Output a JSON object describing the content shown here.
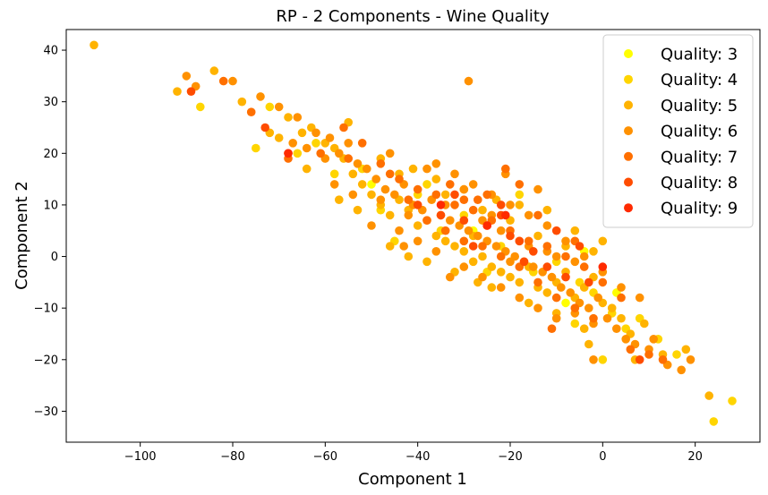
{
  "chart_data": {
    "type": "scatter",
    "title": "RP - 2 Components - Wine Quality",
    "xlabel": "Component 1",
    "ylabel": "Component 2",
    "xlim": [
      -116,
      34
    ],
    "ylim": [
      -36,
      44
    ],
    "xticks": [
      -100,
      -80,
      -60,
      -40,
      -20,
      0,
      20
    ],
    "yticks": [
      -30,
      -20,
      -10,
      0,
      10,
      20,
      30,
      40
    ],
    "xtick_labels": [
      "−100",
      "−80",
      "−60",
      "−40",
      "−20",
      "0",
      "20"
    ],
    "ytick_labels": [
      "−30",
      "−20",
      "−10",
      "0",
      "10",
      "20",
      "30",
      "40"
    ],
    "grid": false,
    "legend_position": "top-right",
    "series": [
      {
        "name": "Quality: 3",
        "color": "#ffff00",
        "points": [
          [
            -4,
            1
          ],
          [
            -8,
            -9
          ],
          [
            3,
            -7
          ],
          [
            -28,
            5
          ],
          [
            -50,
            14
          ]
        ]
      },
      {
        "name": "Quality: 4",
        "color": "#ffd500",
        "points": [
          [
            -75,
            21
          ],
          [
            -58,
            16
          ],
          [
            -48,
            9
          ],
          [
            -52,
            17
          ],
          [
            -40,
            12
          ],
          [
            -35,
            5
          ],
          [
            -30,
            8
          ],
          [
            -22,
            2
          ],
          [
            -15,
            -3
          ],
          [
            -10,
            -1
          ],
          [
            -5,
            -5
          ],
          [
            -2,
            -7
          ],
          [
            2,
            -11
          ],
          [
            5,
            -14
          ],
          [
            8,
            -12
          ],
          [
            12,
            -16
          ],
          [
            16,
            -19
          ],
          [
            -18,
            12
          ],
          [
            -38,
            14
          ],
          [
            -45,
            3
          ],
          [
            -62,
            22
          ],
          [
            -66,
            20
          ],
          [
            -72,
            29
          ],
          [
            -87,
            29
          ],
          [
            24,
            -32
          ],
          [
            28,
            -28
          ],
          [
            -6,
            -13
          ],
          [
            0,
            -20
          ],
          [
            -25,
            -3
          ]
        ]
      },
      {
        "name": "Quality: 5",
        "color": "#ffb300",
        "points": [
          [
            -110,
            41
          ],
          [
            -92,
            32
          ],
          [
            -84,
            36
          ],
          [
            -78,
            30
          ],
          [
            -72,
            24
          ],
          [
            -68,
            27
          ],
          [
            -65,
            24
          ],
          [
            -63,
            25
          ],
          [
            -60,
            22
          ],
          [
            -58,
            21
          ],
          [
            -56,
            19
          ],
          [
            -54,
            16
          ],
          [
            -52,
            14
          ],
          [
            -50,
            12
          ],
          [
            -48,
            10
          ],
          [
            -46,
            8
          ],
          [
            -44,
            11
          ],
          [
            -42,
            9
          ],
          [
            -40,
            6
          ],
          [
            -38,
            7
          ],
          [
            -36,
            4
          ],
          [
            -34,
            3
          ],
          [
            -32,
            2
          ],
          [
            -30,
            1
          ],
          [
            -28,
            -1
          ],
          [
            -26,
            0
          ],
          [
            -24,
            -2
          ],
          [
            -22,
            -3
          ],
          [
            -20,
            -4
          ],
          [
            -18,
            -5
          ],
          [
            -16,
            -2
          ],
          [
            -14,
            -6
          ],
          [
            -12,
            -7
          ],
          [
            -10,
            -5
          ],
          [
            -8,
            -3
          ],
          [
            -6,
            -8
          ],
          [
            -4,
            -6
          ],
          [
            -2,
            -4
          ],
          [
            0,
            -9
          ],
          [
            2,
            -10
          ],
          [
            4,
            -12
          ],
          [
            6,
            -15
          ],
          [
            9,
            -13
          ],
          [
            13,
            -19
          ],
          [
            18,
            -18
          ],
          [
            23,
            -27
          ],
          [
            -34,
            12
          ],
          [
            -26,
            9
          ],
          [
            -20,
            7
          ],
          [
            -14,
            4
          ],
          [
            -8,
            2
          ],
          [
            -2,
            1
          ],
          [
            -44,
            16
          ],
          [
            -36,
            15
          ],
          [
            -30,
            13
          ],
          [
            -46,
            2
          ],
          [
            -42,
            0
          ],
          [
            -38,
            -1
          ],
          [
            -32,
            -3
          ],
          [
            -24,
            -6
          ],
          [
            -16,
            -9
          ],
          [
            -10,
            -11
          ],
          [
            -4,
            -14
          ],
          [
            -70,
            23
          ],
          [
            -57,
            11
          ],
          [
            -53,
            9
          ],
          [
            -28,
            4
          ],
          [
            -18,
            10
          ],
          [
            -12,
            9
          ],
          [
            -6,
            5
          ],
          [
            0,
            3
          ],
          [
            -64,
            17
          ],
          [
            -55,
            26
          ],
          [
            -48,
            19
          ],
          [
            -41,
            17
          ],
          [
            -23,
            11
          ],
          [
            -3,
            -17
          ],
          [
            7,
            -20
          ],
          [
            -27,
            -5
          ]
        ]
      },
      {
        "name": "Quality: 6",
        "color": "#ff9100",
        "points": [
          [
            -90,
            35
          ],
          [
            -88,
            33
          ],
          [
            -80,
            34
          ],
          [
            -74,
            31
          ],
          [
            -70,
            29
          ],
          [
            -66,
            27
          ],
          [
            -62,
            24
          ],
          [
            -59,
            23
          ],
          [
            -57,
            20
          ],
          [
            -55,
            22
          ],
          [
            -53,
            18
          ],
          [
            -51,
            17
          ],
          [
            -49,
            15
          ],
          [
            -47,
            13
          ],
          [
            -45,
            12
          ],
          [
            -43,
            14
          ],
          [
            -41,
            10
          ],
          [
            -39,
            9
          ],
          [
            -37,
            11
          ],
          [
            -35,
            8
          ],
          [
            -33,
            7
          ],
          [
            -31,
            6
          ],
          [
            -29,
            5
          ],
          [
            -27,
            4
          ],
          [
            -25,
            3
          ],
          [
            -23,
            2
          ],
          [
            -21,
            1
          ],
          [
            -19,
            0
          ],
          [
            -17,
            -1
          ],
          [
            -15,
            -2
          ],
          [
            -13,
            -3
          ],
          [
            -11,
            -4
          ],
          [
            -9,
            -6
          ],
          [
            -7,
            -7
          ],
          [
            -5,
            -9
          ],
          [
            -3,
            -10
          ],
          [
            -1,
            -8
          ],
          [
            1,
            -12
          ],
          [
            3,
            -14
          ],
          [
            5,
            -16
          ],
          [
            7,
            -17
          ],
          [
            10,
            -18
          ],
          [
            14,
            -21
          ],
          [
            17,
            -22
          ],
          [
            19,
            -20
          ],
          [
            -29,
            34
          ],
          [
            -36,
            18
          ],
          [
            -32,
            16
          ],
          [
            -28,
            14
          ],
          [
            -24,
            12
          ],
          [
            -20,
            10
          ],
          [
            -16,
            8
          ],
          [
            -12,
            6
          ],
          [
            -8,
            3
          ],
          [
            -4,
            0
          ],
          [
            0,
            -3
          ],
          [
            -50,
            6
          ],
          [
            -44,
            5
          ],
          [
            -40,
            3
          ],
          [
            -36,
            1
          ],
          [
            -30,
            -2
          ],
          [
            -26,
            -4
          ],
          [
            -22,
            -6
          ],
          [
            -18,
            -8
          ],
          [
            -14,
            -10
          ],
          [
            -10,
            -12
          ],
          [
            -6,
            -11
          ],
          [
            -2,
            -13
          ],
          [
            -58,
            14
          ],
          [
            -54,
            12
          ],
          [
            -48,
            11
          ],
          [
            -42,
            8
          ],
          [
            -34,
            10
          ],
          [
            -26,
            7
          ],
          [
            -22,
            5
          ],
          [
            -18,
            3
          ],
          [
            -12,
            1
          ],
          [
            -6,
            -1
          ],
          [
            -64,
            21
          ],
          [
            -60,
            19
          ],
          [
            -46,
            20
          ],
          [
            -38,
            17
          ],
          [
            -30,
            13
          ],
          [
            -24,
            8
          ],
          [
            -20,
            -1
          ],
          [
            -16,
            2
          ],
          [
            -10,
            0
          ],
          [
            4,
            -6
          ],
          [
            8,
            -8
          ],
          [
            -67,
            22
          ],
          [
            -43,
            2
          ],
          [
            -21,
            16
          ],
          [
            -14,
            13
          ],
          [
            -33,
            -4
          ],
          [
            -2,
            -20
          ],
          [
            11,
            -16
          ]
        ]
      },
      {
        "name": "Quality: 7",
        "color": "#ff6f00",
        "points": [
          [
            -82,
            34
          ],
          [
            -76,
            28
          ],
          [
            -68,
            19
          ],
          [
            -61,
            20
          ],
          [
            -56,
            25
          ],
          [
            -52,
            22
          ],
          [
            -48,
            18
          ],
          [
            -44,
            15
          ],
          [
            -40,
            13
          ],
          [
            -36,
            12
          ],
          [
            -32,
            10
          ],
          [
            -28,
            9
          ],
          [
            -24,
            7
          ],
          [
            -20,
            5
          ],
          [
            -16,
            3
          ],
          [
            -12,
            2
          ],
          [
            -8,
            0
          ],
          [
            -4,
            -2
          ],
          [
            0,
            -5
          ],
          [
            4,
            -8
          ],
          [
            -38,
            7
          ],
          [
            -34,
            5
          ],
          [
            -30,
            3
          ],
          [
            -26,
            2
          ],
          [
            -22,
            0
          ],
          [
            -18,
            -2
          ],
          [
            -14,
            -5
          ],
          [
            -10,
            -8
          ],
          [
            -6,
            -10
          ],
          [
            -2,
            -12
          ],
          [
            6,
            -18
          ],
          [
            10,
            -19
          ],
          [
            13,
            -20
          ],
          [
            -21,
            17
          ],
          [
            -18,
            14
          ],
          [
            -25,
            12
          ],
          [
            -42,
            11
          ],
          [
            -46,
            16
          ],
          [
            -55,
            19
          ],
          [
            -30,
            11
          ],
          [
            -14,
            8
          ],
          [
            -6,
            3
          ],
          [
            -11,
            -14
          ],
          [
            -27,
            11
          ],
          [
            -33,
            14
          ]
        ]
      },
      {
        "name": "Quality: 8",
        "color": "#ff4c00",
        "points": [
          [
            -89,
            32
          ],
          [
            -73,
            25
          ],
          [
            -68,
            20
          ],
          [
            -40,
            10
          ],
          [
            -35,
            8
          ],
          [
            -30,
            7
          ],
          [
            -25,
            6
          ],
          [
            -22,
            8
          ],
          [
            -20,
            4
          ],
          [
            -15,
            1
          ],
          [
            -12,
            -2
          ],
          [
            -8,
            -4
          ],
          [
            -28,
            2
          ],
          [
            -18,
            3
          ],
          [
            -10,
            5
          ],
          [
            -5,
            2
          ],
          [
            -3,
            -5
          ],
          [
            8,
            -20
          ],
          [
            -22,
            10
          ],
          [
            -17,
            -1
          ],
          [
            -32,
            12
          ]
        ]
      },
      {
        "name": "Quality: 9",
        "color": "#ff2a00",
        "points": [
          [
            -68,
            20
          ],
          [
            -35,
            10
          ],
          [
            -25,
            6
          ],
          [
            -21,
            8
          ],
          [
            0,
            -2
          ]
        ]
      }
    ]
  }
}
